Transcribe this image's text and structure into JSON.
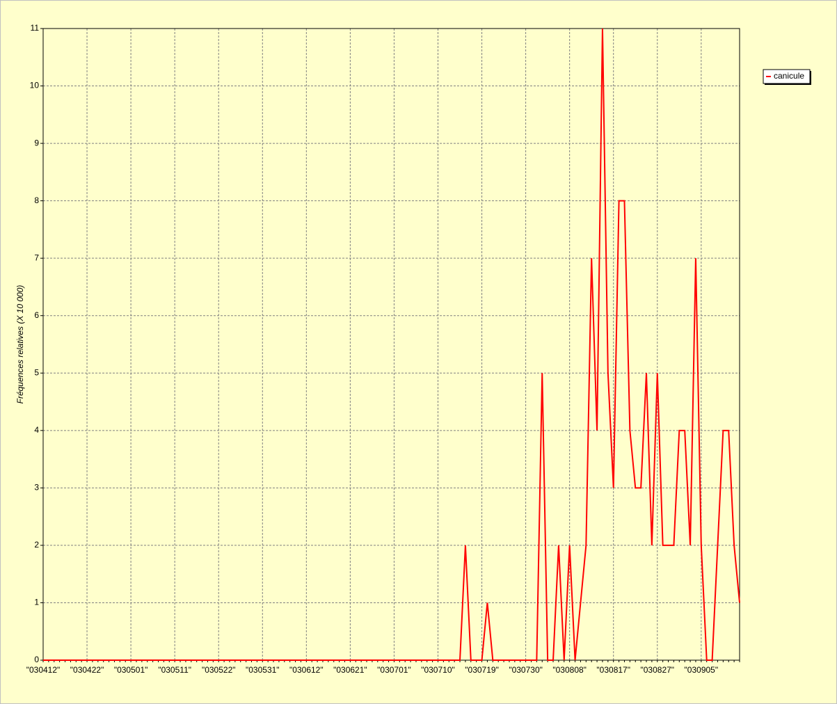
{
  "chart_data": {
    "type": "line",
    "y_label": "Fréquences relatives (X 10 000)",
    "categories": [
      "\"030412\"",
      null,
      null,
      null,
      null,
      null,
      null,
      null,
      "\"030422\"",
      null,
      null,
      null,
      null,
      null,
      null,
      null,
      "\"030501\"",
      null,
      null,
      null,
      null,
      null,
      null,
      null,
      "\"030511\"",
      null,
      null,
      null,
      null,
      null,
      null,
      null,
      "\"030522\"",
      null,
      null,
      null,
      null,
      null,
      null,
      null,
      "\"030531\"",
      null,
      null,
      null,
      null,
      null,
      null,
      null,
      "\"030612\"",
      null,
      null,
      null,
      null,
      null,
      null,
      null,
      "\"030621\"",
      null,
      null,
      null,
      null,
      null,
      null,
      null,
      "\"030701\"",
      null,
      null,
      null,
      null,
      null,
      null,
      null,
      "\"030710\"",
      null,
      null,
      null,
      null,
      null,
      null,
      null,
      "\"030719\"",
      null,
      null,
      null,
      null,
      null,
      null,
      null,
      "\"030730\"",
      null,
      null,
      null,
      null,
      null,
      null,
      null,
      "\"030808\"",
      null,
      null,
      null,
      null,
      null,
      null,
      null,
      "\"030817\"",
      null,
      null,
      null,
      null,
      null,
      null,
      null,
      "\"030827\"",
      null,
      null,
      null,
      null,
      null,
      null,
      null,
      "\"030905\"",
      null,
      null,
      null,
      null,
      null,
      null,
      null
    ],
    "series": [
      {
        "name": "canicule",
        "color": "#ff0000",
        "values": [
          0,
          0,
          0,
          0,
          0,
          0,
          0,
          0,
          0,
          0,
          0,
          0,
          0,
          0,
          0,
          0,
          0,
          0,
          0,
          0,
          0,
          0,
          0,
          0,
          0,
          0,
          0,
          0,
          0,
          0,
          0,
          0,
          0,
          0,
          0,
          0,
          0,
          0,
          0,
          0,
          0,
          0,
          0,
          0,
          0,
          0,
          0,
          0,
          0,
          0,
          0,
          0,
          0,
          0,
          0,
          0,
          0,
          0,
          0,
          0,
          0,
          0,
          0,
          0,
          0,
          0,
          0,
          0,
          0,
          0,
          0,
          0,
          0,
          0,
          0,
          0,
          0,
          2,
          0,
          0,
          0,
          1,
          0,
          0,
          0,
          0,
          0,
          0,
          0,
          0,
          0,
          5,
          0,
          0,
          2,
          0,
          2,
          0,
          1,
          2,
          7,
          4,
          11,
          5,
          3,
          8,
          8,
          4,
          3,
          3,
          5,
          2,
          5,
          2,
          2,
          2,
          4,
          4,
          2,
          7,
          2,
          0,
          0,
          2,
          4,
          4,
          2,
          1
        ]
      }
    ],
    "ylim": [
      0,
      11
    ],
    "yticks": [
      0,
      1,
      2,
      3,
      4,
      5,
      6,
      7,
      8,
      9,
      10,
      11
    ],
    "grid": true,
    "legend": "right"
  }
}
